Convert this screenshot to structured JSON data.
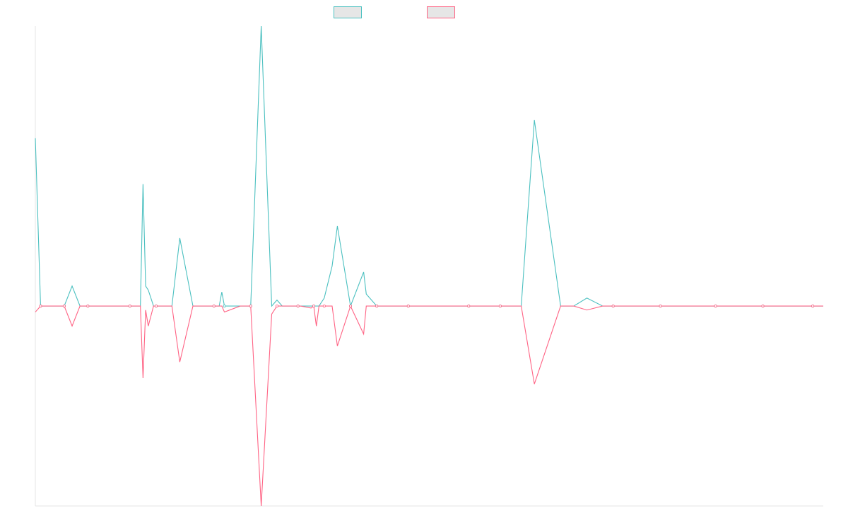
{
  "chart_data": {
    "type": "line",
    "title": "",
    "xlabel": "",
    "ylabel": "",
    "grid": false,
    "legend": {
      "position": "top-center"
    },
    "x": [
      0,
      2,
      6,
      8,
      11,
      14,
      17,
      20,
      25,
      31,
      36,
      40,
      41,
      42,
      43,
      45,
      46,
      47,
      52,
      55,
      60,
      65,
      68,
      70,
      71,
      72,
      78,
      80,
      82,
      86,
      90,
      92,
      94,
      95,
      100,
      101,
      105,
      106,
      107,
      108,
      110,
      113,
      115,
      120,
      125,
      126,
      130,
      132,
      137,
      142,
      152,
      158,
      165,
      169,
      175,
      177,
      180,
      185,
      190,
      200,
      205,
      210,
      216,
      219,
      220,
      225,
      230,
      238,
      245,
      250,
      259,
      266,
      276,
      277,
      282,
      290,
      296,
      300
    ],
    "xlim": [
      0,
      300
    ],
    "ylim": [
      -100,
      140
    ],
    "series": [
      {
        "color": "#4bc0c0",
        "values": [
          84,
          0,
          0,
          0,
          0,
          10,
          0,
          0,
          0,
          0,
          0,
          0,
          61,
          10,
          8,
          0,
          0,
          0,
          0,
          34,
          0,
          0,
          0,
          0,
          7,
          0,
          0,
          0,
          0,
          140,
          0,
          3,
          0,
          0,
          0,
          0,
          0,
          0,
          0,
          0,
          4,
          20,
          40,
          0,
          17,
          6,
          0,
          0,
          0,
          0,
          0,
          0,
          0,
          0,
          0,
          0,
          0,
          0,
          93,
          0,
          0,
          4,
          0,
          0,
          0,
          0,
          0,
          0,
          0,
          0,
          0,
          0,
          0,
          0,
          0,
          0,
          0,
          0
        ]
      },
      {
        "color": "#ff6384",
        "values": [
          -3,
          0,
          0,
          0,
          0,
          -10,
          0,
          0,
          0,
          0,
          0,
          0,
          -36,
          -2,
          -10,
          0,
          0,
          0,
          0,
          -28,
          0,
          0,
          0,
          0,
          0,
          -3,
          0,
          0,
          0,
          -100,
          -4,
          0,
          0,
          0,
          0,
          0,
          -1,
          0,
          -10,
          0,
          0,
          0,
          -20,
          0,
          -14,
          0,
          0,
          0,
          0,
          0,
          0,
          0,
          0,
          0,
          0,
          0,
          0,
          0,
          -39,
          0,
          0,
          -2,
          0,
          0,
          0,
          0,
          0,
          0,
          0,
          0,
          0,
          0,
          0,
          0,
          0,
          0,
          0,
          0
        ]
      }
    ]
  }
}
